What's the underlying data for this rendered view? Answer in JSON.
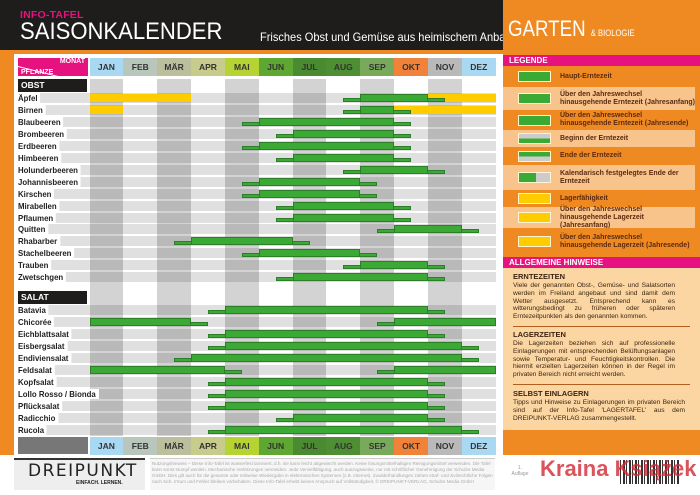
{
  "header": {
    "kicker": "INFO-TAFEL",
    "title": "SAISONKALENDER",
    "subtitle": "Frisches Obst und Gemüse aus heimischem Anbau",
    "brand": "GARTEN",
    "brand_suffix": "& BIOLOGIE"
  },
  "corner": {
    "month": "MONAT",
    "plant": "PFLANZE"
  },
  "months": [
    {
      "label": "JAN",
      "color": "#a9d9f2"
    },
    {
      "label": "FEB",
      "color": "#b9c6bb"
    },
    {
      "label": "MÄR",
      "color": "#bbbf9c"
    },
    {
      "label": "APR",
      "color": "#c7cb8b"
    },
    {
      "label": "MAI",
      "color": "#b6d334"
    },
    {
      "label": "JUN",
      "color": "#5da732"
    },
    {
      "label": "JUL",
      "color": "#4a8a30"
    },
    {
      "label": "AUG",
      "color": "#4e8f33"
    },
    {
      "label": "SEP",
      "color": "#79a95a"
    },
    {
      "label": "OKT",
      "color": "#f0823a"
    },
    {
      "label": "NOV",
      "color": "#b9b9b9"
    },
    {
      "label": "DEZ",
      "color": "#a9d9f2"
    }
  ],
  "colors": {
    "harvest": "#3aaa35",
    "storage": "#ffcc00",
    "section": "#1e1d1c",
    "accent": "#e5127f",
    "orange": "#ef8a22"
  },
  "sections": [
    {
      "title": "OBST",
      "rows": [
        {
          "name": "Äpfel",
          "segments": [
            [
              "storage",
              0,
              3
            ],
            [
              "storage",
              10,
              12
            ],
            [
              "begin",
              7.5,
              8
            ],
            [
              "main",
              8,
              10
            ],
            [
              "end",
              10,
              10.5
            ]
          ]
        },
        {
          "name": "Birnen",
          "segments": [
            [
              "storage",
              0,
              1
            ],
            [
              "storage",
              9,
              12
            ],
            [
              "begin",
              7.5,
              8
            ],
            [
              "main",
              8,
              9
            ],
            [
              "end",
              9,
              9.5
            ]
          ]
        },
        {
          "name": "Blaubeeren",
          "segments": [
            [
              "begin",
              4.5,
              5
            ],
            [
              "main",
              5,
              9
            ],
            [
              "end",
              9,
              9.5
            ]
          ]
        },
        {
          "name": "Brombeeren",
          "segments": [
            [
              "begin",
              5.5,
              6
            ],
            [
              "main",
              6,
              9
            ],
            [
              "end",
              9,
              9.5
            ]
          ]
        },
        {
          "name": "Erdbeeren",
          "segments": [
            [
              "begin",
              4.5,
              5
            ],
            [
              "main",
              5,
              9
            ],
            [
              "end",
              9,
              9.5
            ]
          ]
        },
        {
          "name": "Himbeeren",
          "segments": [
            [
              "begin",
              5.5,
              6
            ],
            [
              "main",
              6,
              9
            ],
            [
              "end",
              9,
              9.5
            ]
          ]
        },
        {
          "name": "Holunderbeeren",
          "segments": [
            [
              "begin",
              7.5,
              8
            ],
            [
              "main",
              8,
              10
            ],
            [
              "end",
              10,
              10.5
            ]
          ]
        },
        {
          "name": "Johannisbeeren",
          "segments": [
            [
              "begin",
              4.5,
              5
            ],
            [
              "main",
              5,
              8
            ],
            [
              "end",
              8,
              8.5
            ]
          ]
        },
        {
          "name": "Kirschen",
          "segments": [
            [
              "begin",
              4.5,
              5
            ],
            [
              "main",
              5,
              8
            ],
            [
              "end",
              8,
              8.5
            ]
          ]
        },
        {
          "name": "Mirabellen",
          "segments": [
            [
              "begin",
              5.5,
              6
            ],
            [
              "main",
              6,
              9
            ],
            [
              "end",
              9,
              9.5
            ]
          ]
        },
        {
          "name": "Pflaumen",
          "segments": [
            [
              "begin",
              5.5,
              6
            ],
            [
              "main",
              6,
              9
            ],
            [
              "end",
              9,
              9.5
            ]
          ]
        },
        {
          "name": "Quitten",
          "segments": [
            [
              "begin",
              8.5,
              9
            ],
            [
              "main",
              9,
              11
            ],
            [
              "end",
              11,
              11.5
            ]
          ]
        },
        {
          "name": "Rhabarber",
          "segments": [
            [
              "begin",
              2.5,
              3
            ],
            [
              "main",
              3,
              6
            ],
            [
              "end",
              6,
              6.5
            ]
          ]
        },
        {
          "name": "Stachelbeeren",
          "segments": [
            [
              "begin",
              4.5,
              5
            ],
            [
              "main",
              5,
              8
            ],
            [
              "end",
              8,
              8.5
            ]
          ]
        },
        {
          "name": "Trauben",
          "segments": [
            [
              "begin",
              7.5,
              8
            ],
            [
              "main",
              8,
              10
            ],
            [
              "end",
              10,
              10.5
            ]
          ]
        },
        {
          "name": "Zwetschgen",
          "segments": [
            [
              "begin",
              5.5,
              6
            ],
            [
              "main",
              6,
              10
            ],
            [
              "end",
              10,
              10.5
            ]
          ]
        }
      ]
    },
    {
      "title": "SALAT",
      "rows": [
        {
          "name": "Batavia",
          "segments": [
            [
              "begin",
              3.5,
              4
            ],
            [
              "main",
              4,
              10
            ],
            [
              "end",
              10,
              10.5
            ]
          ]
        },
        {
          "name": "Chicorée",
          "segments": [
            [
              "main",
              0,
              3
            ],
            [
              "end",
              3,
              3.5
            ],
            [
              "begin",
              8.5,
              9
            ],
            [
              "main",
              9,
              12
            ]
          ]
        },
        {
          "name": "Eichblattsalat",
          "segments": [
            [
              "begin",
              3.5,
              4
            ],
            [
              "main",
              4,
              10
            ],
            [
              "end",
              10,
              10.5
            ]
          ]
        },
        {
          "name": "Eisbergsalat",
          "segments": [
            [
              "begin",
              3.5,
              4
            ],
            [
              "main",
              4,
              11
            ],
            [
              "end",
              11,
              11.5
            ]
          ]
        },
        {
          "name": "Endiviensalat",
          "segments": [
            [
              "begin",
              2.5,
              3
            ],
            [
              "main",
              3,
              11
            ],
            [
              "end",
              11,
              11.5
            ]
          ]
        },
        {
          "name": "Feldsalat",
          "segments": [
            [
              "main",
              0,
              4
            ],
            [
              "end",
              4,
              4.5
            ],
            [
              "begin",
              8.5,
              9
            ],
            [
              "main",
              9,
              12
            ]
          ]
        },
        {
          "name": "Kopfsalat",
          "segments": [
            [
              "begin",
              3.5,
              4
            ],
            [
              "main",
              4,
              10
            ],
            [
              "end",
              10,
              10.5
            ]
          ]
        },
        {
          "name": "Lollo Rosso / Bionda",
          "segments": [
            [
              "begin",
              3.5,
              4
            ],
            [
              "main",
              4,
              10
            ],
            [
              "end",
              10,
              10.5
            ]
          ]
        },
        {
          "name": "Pflücksalat",
          "segments": [
            [
              "begin",
              3.5,
              4
            ],
            [
              "main",
              4,
              10
            ],
            [
              "end",
              10,
              10.5
            ]
          ]
        },
        {
          "name": "Radicchio",
          "segments": [
            [
              "begin",
              5.5,
              6
            ],
            [
              "main",
              6,
              10
            ],
            [
              "end",
              10,
              10.5
            ]
          ]
        },
        {
          "name": "Rucola",
          "segments": [
            [
              "begin",
              3.5,
              4
            ],
            [
              "main",
              4,
              11
            ],
            [
              "end",
              11,
              11.5
            ]
          ]
        }
      ]
    }
  ],
  "legend": {
    "title": "LEGENDE",
    "items": [
      {
        "label": "Haupt-Erntezeit",
        "kind": "main"
      },
      {
        "label": "Über den Jahreswechsel hinausgehende Erntezeit (Jahresanfang)",
        "kind": "main-wrap-start"
      },
      {
        "label": "Über den Jahreswechsel hinausgehende Erntezeit (Jahresende)",
        "kind": "main-wrap-end"
      },
      {
        "label": "Beginn der Erntezeit",
        "kind": "begin"
      },
      {
        "label": "Ende der Erntezeit",
        "kind": "end"
      },
      {
        "label": "Kalendarisch festgelegtes Ende der Erntezeit",
        "kind": "fixed-end"
      },
      {
        "label": "Lagerfähigkeit",
        "kind": "storage"
      },
      {
        "label": "Über den Jahreswechsel hinausgehende Lagerzeit (Jahresanfang)",
        "kind": "storage-wrap-start"
      },
      {
        "label": "Über den Jahreswechsel hinausgehende Lagerzeit (Jahresende)",
        "kind": "storage-wrap-end"
      }
    ]
  },
  "hints": {
    "title": "ALLGEMEINE HINWEISE",
    "blocks": [
      {
        "heading": "ERNTEZEITEN",
        "text": "Viele der genannten Obst-, Gemüse- und Salatsorten werden im Freiland angebaut und sind damit dem Wetter ausgesetzt. Entsprechend kann es witterungsbedingt zu früheren oder späteren Erntezeitpunkten als den genannten kommen."
      },
      {
        "heading": "LAGERZEITEN",
        "text": "Die Lagerzeiten beziehen sich auf professionelle Einlagerungen mit entsprechenden Belüftungsanlagen sowie Temperatur- und Feuchtigkeitskontrollen. Die hiermit erzielten Lagerzeiten können in der Regel im privaten Bereich nicht erreicht werden."
      },
      {
        "heading": "SELBST EINLAGERN",
        "text": "Tipps und Hinweise zu Einlagerungen im privaten Bereich sind auf der Info-Tafel 'LAGERTAFEL' aus dem DREIPUNKT-VERLAG zusammengestellt."
      }
    ]
  },
  "footer": {
    "logo": "DREIPUNKT",
    "slogan": "EINFACH. LERNEN.",
    "legal": "Nutzungshinweis – Diese Info-Tafel ist wasserfest laminiert, d.h. sie kann leicht abgewischt werden. Keine lösungsmittelhaltigen Reinigungsmittel verwenden. Die Tafel kann sonst stumpf werden. Mechanische Verletzungen vermeiden. Jede Vervielfältigung, auch auszugsweise, nur mit schriftlicher Genehmigung der Schulze Media GmbH. Dies gilt auch für die gesamte oder teilweise Wiedergabe in elektronischen Systemen (z.B. Internet). Zuwiderhandlungen ziehen straf- und zivilrechtliche Folgen nach sich. Irrtum und Fehler bleiben vorbehalten. Diese Info-Tafel erhebt keinen Anspruch auf Vollständigkeit. © DREIPUNKT-VERLAG, Schulze Media GmbH",
    "edition": "1. Auflage",
    "watermark": "Kraina Książek"
  }
}
